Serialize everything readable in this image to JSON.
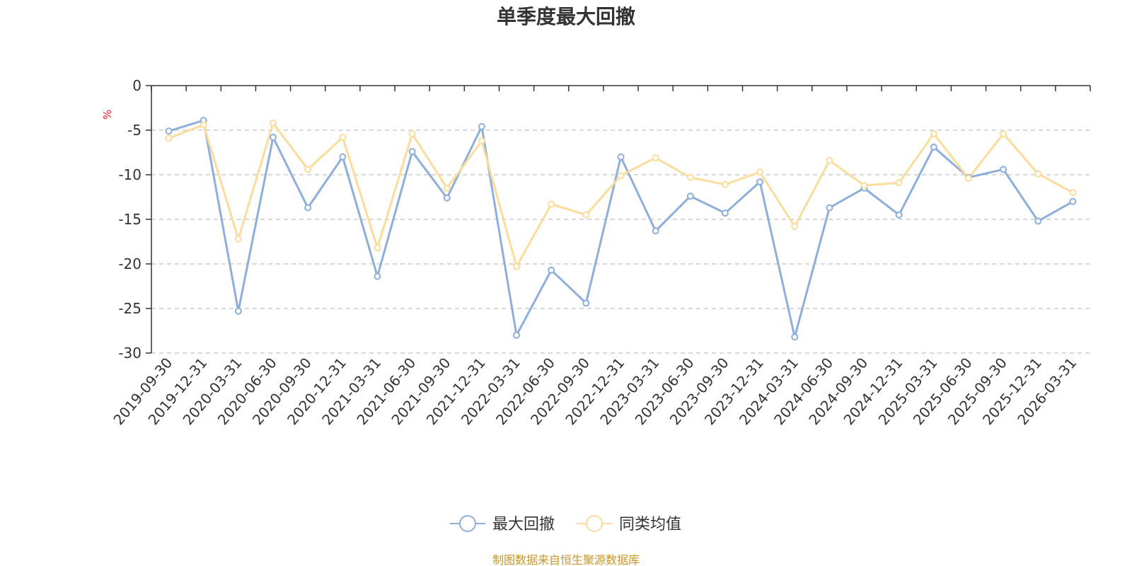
{
  "chart_data": {
    "type": "line",
    "title": "单季度最大回撤",
    "ylabel": "%",
    "xlabel": "",
    "ylim": [
      -30,
      0
    ],
    "yticks": [
      0,
      -5,
      -10,
      -15,
      -20,
      -25,
      -30
    ],
    "grid": true,
    "legend_position": "bottom-center",
    "categories": [
      "2019-09-30",
      "2019-12-31",
      "2020-03-31",
      "2020-06-30",
      "2020-09-30",
      "2020-12-31",
      "2021-03-31",
      "2021-06-30",
      "2021-09-30",
      "2021-12-31",
      "2022-03-31",
      "2022-06-30",
      "2022-09-30",
      "2022-12-31",
      "2023-03-31",
      "2023-06-30",
      "2023-09-30",
      "2023-12-31",
      "2024-03-31",
      "2024-06-30",
      "2024-09-30",
      "2024-12-31",
      "2025-03-31",
      "2025-06-30",
      "2025-09-30",
      "2025-12-31",
      "2026-03-31"
    ],
    "series": [
      {
        "name": "最大回撤",
        "color": "#8eaedb",
        "values": [
          -5.1,
          -3.9,
          -25.3,
          -5.8,
          -13.7,
          -8.0,
          -21.4,
          -7.4,
          -12.6,
          -4.6,
          -28.0,
          -20.7,
          -24.4,
          -8.0,
          -16.3,
          -12.4,
          -14.3,
          -10.8,
          -28.2,
          -13.7,
          -11.5,
          -14.5,
          -6.9,
          -10.3,
          -9.4,
          -15.2,
          -13.0
        ]
      },
      {
        "name": "同类均值",
        "color": "#fbdc9c",
        "values": [
          -5.9,
          -4.4,
          -17.2,
          -4.2,
          -9.4,
          -5.8,
          -18.2,
          -5.4,
          -11.5,
          -6.2,
          -20.3,
          -13.3,
          -14.5,
          -10.1,
          -8.1,
          -10.3,
          -11.1,
          -9.7,
          -15.8,
          -8.4,
          -11.2,
          -10.9,
          -5.4,
          -10.4,
          -5.4,
          -9.9,
          -12.0
        ]
      }
    ],
    "source": "制图数据来自恒生聚源数据库",
    "source_color": "#c8962a",
    "unit_color": "#e02020"
  }
}
